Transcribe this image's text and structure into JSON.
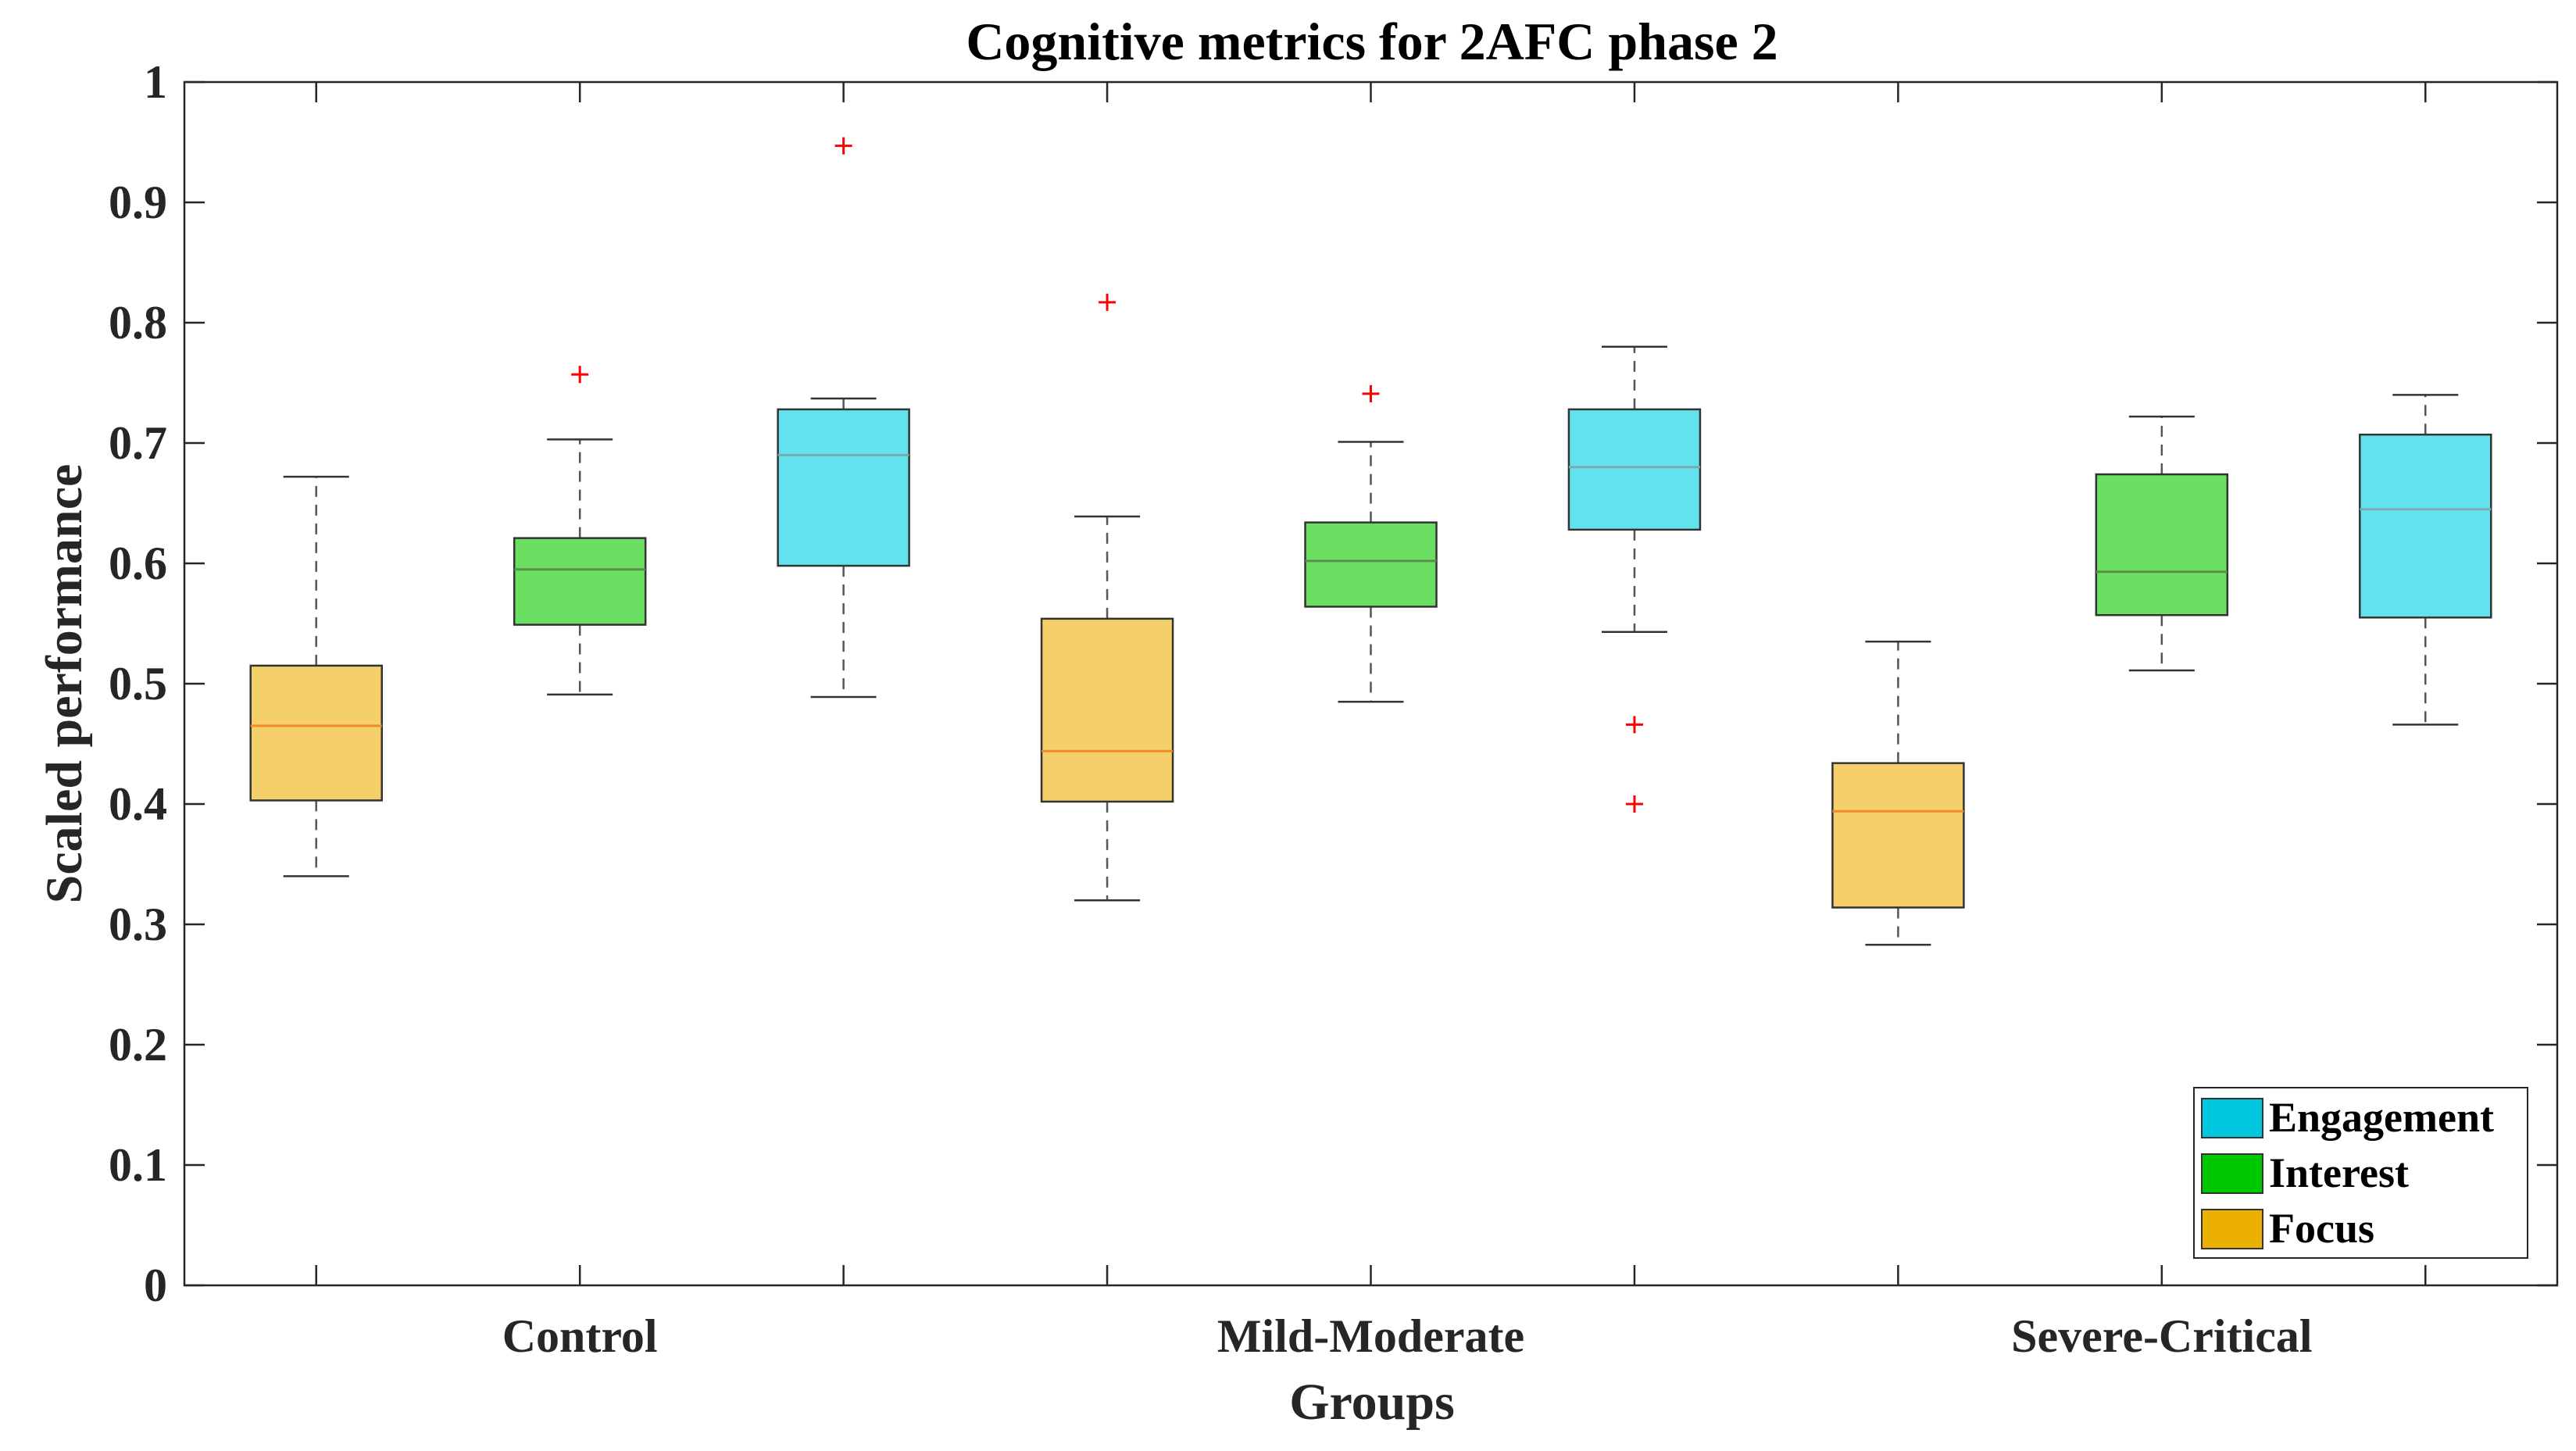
{
  "chart_data": {
    "type": "boxplot",
    "title": "Cognitive metrics for 2AFC phase 2",
    "xlabel": "Groups",
    "ylabel": "Scaled performance",
    "ylim": [
      0,
      1
    ],
    "yticks": [
      "0",
      "0.1",
      "0.2",
      "0.3",
      "0.4",
      "0.5",
      "0.6",
      "0.7",
      "0.8",
      "0.9",
      "1"
    ],
    "ytick_values": [
      0,
      0.1,
      0.2,
      0.3,
      0.4,
      0.5,
      0.6,
      0.7,
      0.8,
      0.9,
      1.0
    ],
    "categories": [
      "Control",
      "Mild-Moderate",
      "Severe-Critical"
    ],
    "series_colors": {
      "Focus": "#f5d06a",
      "Interest": "#6bdf62",
      "Engagement": "#63e2ee"
    },
    "median_colors": {
      "Focus": "#f08a2c",
      "Interest": "#5a8f4a",
      "Engagement": "#7aa9b0"
    },
    "legend": {
      "placement": "bottom-right",
      "entries": [
        {
          "name": "Engagement",
          "color": "#00c8e0"
        },
        {
          "name": "Interest",
          "color": "#00c800"
        },
        {
          "name": "Focus",
          "color": "#ecb100"
        }
      ]
    },
    "boxes": [
      {
        "group": "Control",
        "series": "Focus",
        "whisker_low": 0.34,
        "q1": 0.403,
        "median": 0.465,
        "q3": 0.515,
        "whisker_high": 0.672,
        "outliers": []
      },
      {
        "group": "Control",
        "series": "Interest",
        "whisker_low": 0.491,
        "q1": 0.549,
        "median": 0.595,
        "q3": 0.621,
        "whisker_high": 0.703,
        "outliers": [
          0.757
        ]
      },
      {
        "group": "Control",
        "series": "Engagement",
        "whisker_low": 0.489,
        "q1": 0.598,
        "median": 0.69,
        "q3": 0.728,
        "whisker_high": 0.737,
        "outliers": [
          0.947
        ]
      },
      {
        "group": "Mild-Moderate",
        "series": "Focus",
        "whisker_low": 0.32,
        "q1": 0.402,
        "median": 0.444,
        "q3": 0.554,
        "whisker_high": 0.639,
        "outliers": [
          0.817
        ]
      },
      {
        "group": "Mild-Moderate",
        "series": "Interest",
        "whisker_low": 0.485,
        "q1": 0.564,
        "median": 0.602,
        "q3": 0.634,
        "whisker_high": 0.701,
        "outliers": [
          0.741
        ]
      },
      {
        "group": "Mild-Moderate",
        "series": "Engagement",
        "whisker_low": 0.543,
        "q1": 0.628,
        "median": 0.68,
        "q3": 0.728,
        "whisker_high": 0.78,
        "outliers": [
          0.466,
          0.4
        ]
      },
      {
        "group": "Severe-Critical",
        "series": "Focus",
        "whisker_low": 0.283,
        "q1": 0.314,
        "median": 0.394,
        "q3": 0.434,
        "whisker_high": 0.535,
        "outliers": []
      },
      {
        "group": "Severe-Critical",
        "series": "Interest",
        "whisker_low": 0.511,
        "q1": 0.557,
        "median": 0.593,
        "q3": 0.674,
        "whisker_high": 0.722,
        "outliers": []
      },
      {
        "group": "Severe-Critical",
        "series": "Engagement",
        "whisker_low": 0.466,
        "q1": 0.555,
        "median": 0.645,
        "q3": 0.707,
        "whisker_high": 0.74,
        "outliers": []
      }
    ]
  }
}
